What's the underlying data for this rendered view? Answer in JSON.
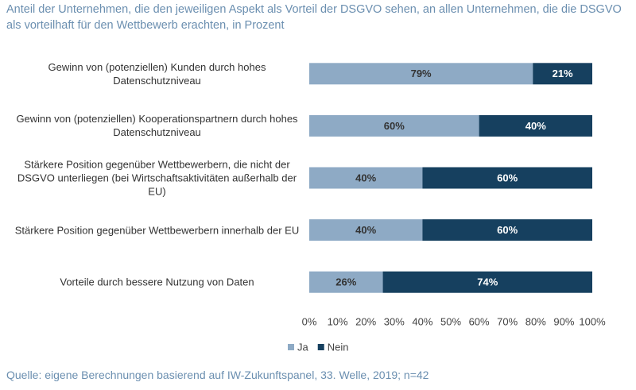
{
  "title": "Anteil der Unternehmen, die den jeweiligen Aspekt als Vorteil der DSGVO sehen, an allen Unternehmen, die die DSGVO als vorteilhaft für den Wettbewerb erachten, in Prozent",
  "source": "Quelle: eigene Berechnungen basierend auf IW-Zukunftspanel, 33. Welle, 2019; n=42",
  "chart_data": {
    "type": "stacked-bar-horizontal",
    "categories": [
      "Gewinn von (potenziellen) Kunden durch hohes Datenschutzniveau",
      "Gewinn von (potenziellen) Kooperationspartnern durch hohes Datenschutzniveau",
      "Stärkere Position gegenüber Wettbewerbern, die nicht der DSGVO unterliegen (bei Wirtschaftsaktivitäten außerhalb der EU)",
      "Stärkere Position gegenüber Wettbewerbern innerhalb der EU",
      "Vorteile durch bessere Nutzung von Daten"
    ],
    "series": [
      {
        "name": "Ja",
        "color": "#8eaac5",
        "label_color": "#333333",
        "values": [
          79,
          60,
          40,
          40,
          26
        ],
        "value_labels": [
          "79%",
          "60%",
          "40%",
          "40%",
          "26%"
        ]
      },
      {
        "name": "Nein",
        "color": "#16405f",
        "label_color": "#ffffff",
        "values": [
          21,
          40,
          60,
          60,
          74
        ],
        "value_labels": [
          "21%",
          "40%",
          "60%",
          "60%",
          "74%"
        ]
      }
    ],
    "xlim": [
      0,
      100
    ],
    "xticks": [
      {
        "value": 0,
        "label": "0%"
      },
      {
        "value": 10,
        "label": "10%"
      },
      {
        "value": 20,
        "label": "20%"
      },
      {
        "value": 30,
        "label": "30%"
      },
      {
        "value": 40,
        "label": "40%"
      },
      {
        "value": 50,
        "label": "50%"
      },
      {
        "value": 60,
        "label": "60%"
      },
      {
        "value": 70,
        "label": "70%"
      },
      {
        "value": 80,
        "label": "80%"
      },
      {
        "value": 90,
        "label": "90%"
      },
      {
        "value": 100,
        "label": "100%"
      }
    ],
    "legend": "bottom"
  }
}
